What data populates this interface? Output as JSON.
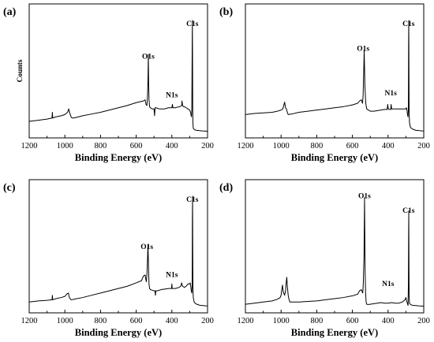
{
  "chart_data": [
    {
      "type": "line",
      "panel_label": "(a)",
      "xlabel": "Binding Energy (eV)",
      "ylabel": "Counts",
      "xlim": [
        1200,
        200
      ],
      "xticks": [
        "1200",
        "1000",
        "800",
        "600",
        "400",
        "200"
      ],
      "ylim": [
        0,
        100
      ],
      "annotations": [
        {
          "text": "O1s",
          "x": 532,
          "y": 62
        },
        {
          "text": "N1s",
          "x": 400,
          "y": 28
        },
        {
          "text": "C1s",
          "x": 285,
          "y": 91
        }
      ],
      "series": [
        {
          "x": [
            1200,
            1150,
            1100,
            1072,
            1070,
            1068,
            1050,
            1020,
            1000,
            985,
            978,
            972,
            965,
            960,
            950,
            900,
            850,
            800,
            750,
            700,
            650,
            600,
            560,
            550,
            545,
            540,
            537,
            534,
            532,
            530,
            528,
            525,
            520,
            510,
            500,
            497,
            494,
            490,
            480,
            470,
            460,
            450,
            440,
            430,
            420,
            410,
            400,
            397,
            394,
            390,
            380,
            370,
            355,
            345,
            343,
            340,
            335,
            330,
            320,
            310,
            300,
            295,
            292,
            290,
            288,
            286,
            285,
            284,
            283,
            282,
            280,
            275,
            270,
            260,
            250,
            240,
            230,
            220,
            210,
            200
          ],
          "y": [
            9,
            10,
            11,
            12,
            17,
            12,
            13,
            14,
            15,
            17,
            20,
            16,
            13,
            12,
            12,
            14,
            15.5,
            17,
            19,
            21,
            23,
            25.5,
            27,
            28,
            24,
            23,
            30,
            45,
            68,
            40,
            28,
            22,
            21,
            20,
            20,
            14,
            21,
            21,
            20.5,
            20,
            20,
            20,
            20,
            20.5,
            21,
            21,
            21,
            24,
            21,
            21,
            21,
            21.5,
            22,
            23,
            27,
            23,
            22,
            22,
            21,
            20,
            19,
            17,
            14,
            13,
            20,
            75,
            98,
            60,
            20,
            8,
            3,
            2,
            1.5,
            1,
            1,
            0.8,
            0.6,
            0.5,
            0.4,
            0.3
          ]
        }
      ]
    },
    {
      "type": "line",
      "panel_label": "(b)",
      "xlabel": "Binding Energy (eV)",
      "ylabel": "",
      "xlim": [
        1200,
        200
      ],
      "xticks": [
        "1200",
        "1000",
        "800",
        "600",
        "400",
        "200"
      ],
      "ylim": [
        0,
        100
      ],
      "annotations": [
        {
          "text": "O1s",
          "x": 540,
          "y": 69
        },
        {
          "text": "N1s",
          "x": 385,
          "y": 30
        },
        {
          "text": "C1s",
          "x": 285,
          "y": 91
        }
      ],
      "series": [
        {
          "x": [
            1200,
            1150,
            1100,
            1050,
            1020,
            1000,
            990,
            985,
            980,
            975,
            970,
            965,
            960,
            940,
            900,
            850,
            800,
            750,
            700,
            650,
            600,
            570,
            560,
            550,
            546,
            543,
            540,
            537,
            534,
            530,
            525,
            520,
            500,
            480,
            460,
            440,
            420,
            405,
            402,
            399,
            395,
            385,
            383,
            380,
            370,
            350,
            320,
            300,
            297,
            294,
            292,
            290,
            288,
            286,
            285,
            284,
            283,
            282,
            280,
            275,
            270,
            260,
            250,
            240,
            230,
            220,
            210,
            200
          ],
          "y": [
            15,
            16,
            16.5,
            17,
            18,
            19,
            20,
            23,
            26,
            21,
            20,
            17,
            15,
            15.5,
            17,
            18,
            19,
            20,
            21,
            22,
            23.5,
            25,
            27,
            28,
            26,
            25,
            32,
            50,
            72,
            40,
            25,
            20,
            18,
            18,
            18.5,
            19,
            19.5,
            19.5,
            24,
            20,
            19.5,
            19.5,
            24,
            20,
            20,
            20,
            20,
            20,
            21,
            19,
            16,
            14,
            13,
            20,
            75,
            98,
            55,
            20,
            8,
            4,
            3,
            2,
            1.5,
            1,
            1,
            0.8,
            0.6,
            0.5
          ]
        }
      ]
    },
    {
      "type": "line",
      "panel_label": "(c)",
      "xlabel": "Binding Energy (eV)",
      "ylabel": "",
      "xlim": [
        1200,
        200
      ],
      "xticks": [
        "1200",
        "1000",
        "800",
        "600",
        "400",
        "200"
      ],
      "ylim": [
        0,
        100
      ],
      "annotations": [
        {
          "text": "O1s",
          "x": 540,
          "y": 49
        },
        {
          "text": "N1s",
          "x": 400,
          "y": 24
        },
        {
          "text": "C1s",
          "x": 285,
          "y": 91
        }
      ],
      "series": [
        {
          "x": [
            1200,
            1150,
            1100,
            1072,
            1070,
            1068,
            1050,
            1020,
            1000,
            990,
            980,
            975,
            970,
            965,
            960,
            950,
            900,
            850,
            800,
            750,
            700,
            650,
            600,
            570,
            560,
            550,
            546,
            543,
            540,
            537,
            534,
            530,
            528,
            525,
            520,
            500,
            495,
            492,
            490,
            480,
            460,
            440,
            420,
            402,
            400,
            398,
            390,
            380,
            360,
            350,
            345,
            340,
            330,
            320,
            310,
            300,
            297,
            294,
            292,
            290,
            288,
            286,
            285,
            284,
            283,
            282,
            280,
            275,
            270,
            260,
            250,
            240,
            230,
            220,
            210,
            200
          ],
          "y": [
            4,
            5,
            5.5,
            6,
            10,
            6,
            7,
            8,
            9,
            11,
            12,
            8,
            7,
            6,
            6,
            6.5,
            8,
            10,
            12,
            14,
            16,
            18,
            21,
            23,
            27,
            28,
            24,
            22,
            28,
            40,
            55,
            30,
            20,
            16,
            15,
            14,
            14,
            10,
            14,
            14,
            15,
            15.5,
            16,
            16,
            20,
            16,
            16,
            16,
            17,
            18,
            21,
            18,
            17,
            18,
            20,
            20,
            21,
            18,
            15,
            13,
            12,
            20,
            75,
            98,
            55,
            20,
            8,
            4,
            3,
            2,
            1.5,
            1,
            1,
            0.8,
            0.6,
            0.5
          ]
        }
      ]
    },
    {
      "type": "line",
      "panel_label": "(d)",
      "xlabel": "Binding Energy (eV)",
      "ylabel": "",
      "xlim": [
        1200,
        200
      ],
      "xticks": [
        "1200",
        "1000",
        "800",
        "600",
        "400",
        "200"
      ],
      "ylim": [
        0,
        100
      ],
      "annotations": [
        {
          "text": "O1s",
          "x": 532,
          "y": 94
        },
        {
          "text": "N1s",
          "x": 400,
          "y": 16
        },
        {
          "text": "C1s",
          "x": 285,
          "y": 81
        }
      ],
      "series": [
        {
          "x": [
            1200,
            1150,
            1100,
            1050,
            1020,
            1005,
            1000,
            997,
            992,
            988,
            980,
            975,
            972,
            968,
            965,
            960,
            955,
            950,
            900,
            850,
            800,
            750,
            700,
            650,
            600,
            570,
            560,
            550,
            545,
            542,
            539,
            535,
            532,
            529,
            526,
            523,
            520,
            510,
            500,
            480,
            460,
            440,
            420,
            400,
            380,
            360,
            340,
            320,
            305,
            300,
            296,
            292,
            290,
            288,
            286,
            285,
            284,
            283,
            282,
            280,
            275,
            270,
            260,
            250,
            240,
            230,
            220,
            210,
            200
          ],
          "y": [
            2,
            3,
            4,
            5,
            6.5,
            8,
            10,
            14,
            19,
            13,
            10,
            14,
            20,
            26,
            18,
            10,
            6,
            4,
            4,
            4.5,
            5,
            6,
            7,
            8,
            9.5,
            11,
            14,
            15,
            13,
            12,
            20,
            45,
            97,
            35,
            12,
            4,
            2,
            1.8,
            2,
            2.5,
            3,
            3.5,
            3,
            3,
            3.5,
            3,
            3,
            4,
            6,
            8,
            5,
            3,
            2,
            1,
            20,
            60,
            85,
            40,
            10,
            3,
            2,
            1.5,
            1,
            1,
            0.8,
            0.6,
            0.5,
            0.4,
            0.3
          ]
        }
      ]
    }
  ]
}
